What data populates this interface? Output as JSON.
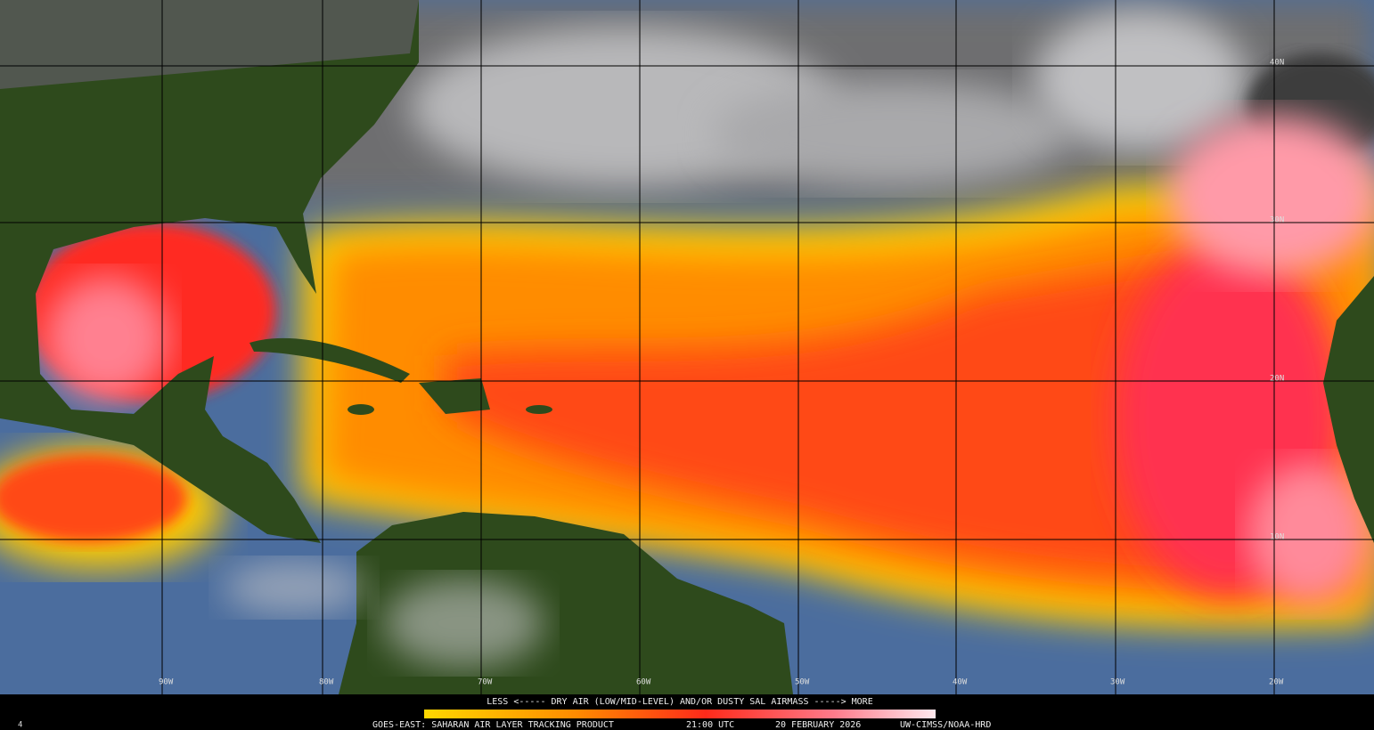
{
  "map": {
    "longitude_labels": [
      "90W",
      "80W",
      "70W",
      "60W",
      "50W",
      "40W",
      "30W",
      "20W"
    ],
    "latitude_labels": [
      "40N",
      "30N",
      "20N",
      "10N"
    ]
  },
  "legend": {
    "caption": "LESS <----- DRY AIR (LOW/MID-LEVEL) AND/OR DUSTY SAL AIRMASS -----> MORE"
  },
  "footer": {
    "product": "GOES-EAST: SAHARAN AIR LAYER TRACKING PRODUCT",
    "time": "21:00 UTC",
    "date": "20 FEBRUARY 2026",
    "credit": "UW-CIMSS/NOAA-HRD"
  },
  "corner_label": "4"
}
